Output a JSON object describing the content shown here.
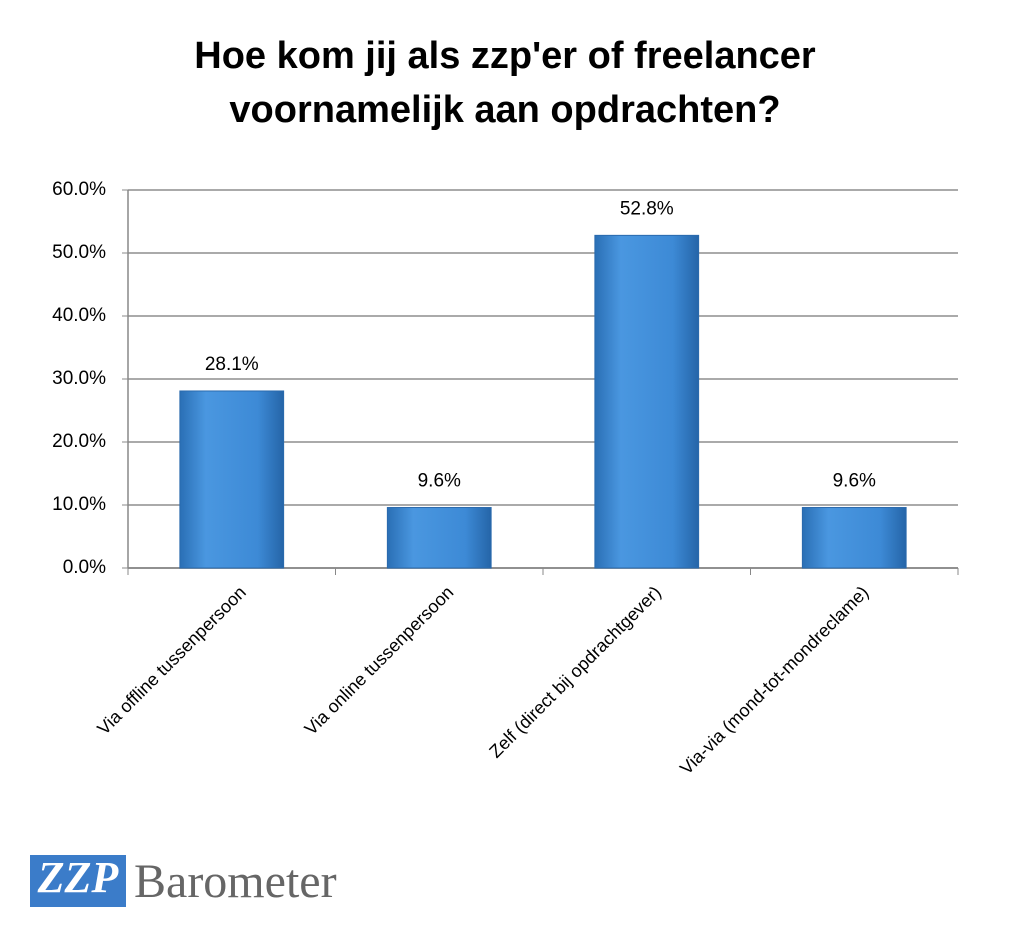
{
  "chart_data": {
    "type": "bar",
    "title": [
      "Hoe kom jij als zzp'er of freelancer",
      "voornamelijk aan opdrachten?"
    ],
    "categories": [
      "Via offline tussenpersoon",
      "Via online tussenpersoon",
      "Zelf (direct bij opdrachtgever)",
      "Via-via (mond-tot-mondreclame)"
    ],
    "values": [
      28.1,
      9.6,
      52.8,
      9.6
    ],
    "value_labels": [
      "28.1%",
      "9.6%",
      "52.8%",
      "9.6%"
    ],
    "color": "#3d8ad6",
    "ylim": [
      0,
      60
    ],
    "yticks": [
      {
        "value": 0,
        "label": "0.0%"
      },
      {
        "value": 10,
        "label": "10.0%"
      },
      {
        "value": 20,
        "label": "20.0%"
      },
      {
        "value": 30,
        "label": "30.0%"
      },
      {
        "value": 40,
        "label": "40.0%"
      },
      {
        "value": 50,
        "label": "50.0%"
      },
      {
        "value": 60,
        "label": "60.0%"
      }
    ],
    "grid": true
  },
  "logo": {
    "mark": "ZZP",
    "text": "Barometer"
  }
}
